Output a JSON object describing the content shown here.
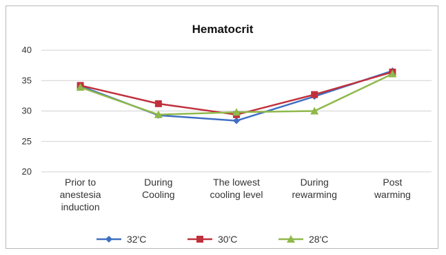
{
  "chart_data": {
    "type": "line",
    "title": "Hematocrit",
    "xlabel": "",
    "ylabel": "",
    "ylim": [
      20,
      40
    ],
    "yticks": [
      "20",
      "25",
      "30",
      "35",
      "40"
    ],
    "categories": [
      [
        "Prior to",
        "anestesia",
        "induction"
      ],
      [
        "During",
        "Cooling"
      ],
      [
        "The lowest",
        "cooling level"
      ],
      [
        "During",
        "rewarming"
      ],
      [
        "Post",
        "warming"
      ]
    ],
    "grid": true,
    "legend_position": "bottom",
    "series": [
      {
        "name": "32'C",
        "color": "#3e6fc2",
        "marker": "diamond",
        "values": [
          34.1,
          29.3,
          28.4,
          32.4,
          36.6
        ]
      },
      {
        "name": "30'C",
        "color": "#c0303c",
        "marker": "square",
        "values": [
          34.2,
          31.2,
          29.4,
          32.7,
          36.4
        ]
      },
      {
        "name": "28'C",
        "color": "#8fb84a",
        "marker": "triangle",
        "values": [
          33.9,
          29.4,
          29.8,
          30.0,
          36.1
        ]
      }
    ]
  }
}
